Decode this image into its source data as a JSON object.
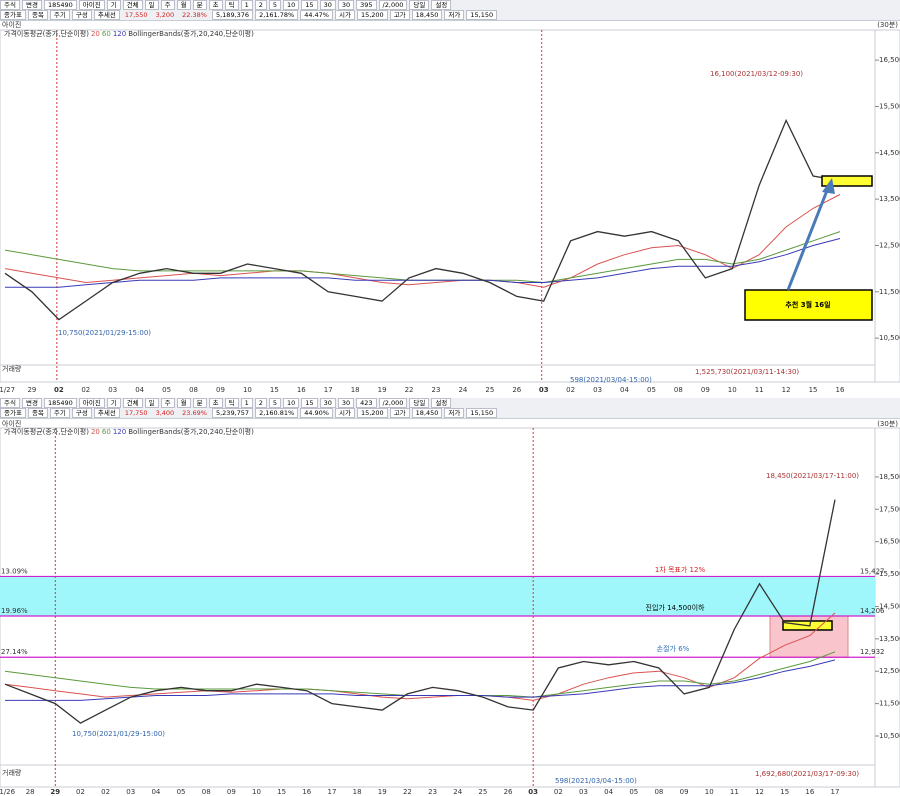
{
  "toolbars": [
    {
      "row1": [
        "주식",
        "변경",
        "185490",
        "아이진",
        "기",
        "건체",
        "일",
        "주",
        "월",
        "분",
        "초",
        "틱",
        "1",
        "2",
        "5",
        "10",
        "15",
        "30",
        "30",
        "395",
        "/2,000",
        "당일",
        "설정"
      ],
      "row2": [
        "종가표",
        "종목",
        "주기",
        "구성",
        "추세선",
        "17,550",
        "3,200",
        "22.38%",
        "5,189,376",
        "2,161.78%",
        "44.47%",
        "시가",
        "15,200",
        "고가",
        "18,450",
        "저가",
        "15,150"
      ]
    },
    {
      "row1": [
        "주식",
        "변경",
        "185490",
        "아이진",
        "기",
        "건체",
        "일",
        "주",
        "월",
        "분",
        "초",
        "틱",
        "1",
        "2",
        "5",
        "10",
        "15",
        "30",
        "30",
        "423",
        "/2,000",
        "당일",
        "설정"
      ],
      "row2": [
        "종가표",
        "종목",
        "주기",
        "구성",
        "추세선",
        "17,750",
        "3,400",
        "23.69%",
        "5,239,757",
        "2,160.81%",
        "44.90%",
        "시가",
        "15,200",
        "고가",
        "18,450",
        "저가",
        "15,150"
      ]
    }
  ],
  "chart_data": [
    {
      "type": "line",
      "legend_title": "가격이동평균(종가,단순이평)",
      "legend_extra": "BollingerBands(종가,20,240,단순이평)",
      "categories": [
        "01/27",
        "29",
        "02",
        "02",
        "03",
        "04",
        "05",
        "08",
        "09",
        "10",
        "15",
        "16",
        "17",
        "18",
        "19",
        "22",
        "23",
        "24",
        "25",
        "26",
        "03",
        "02",
        "03",
        "04",
        "05",
        "08",
        "09",
        "10",
        "11",
        "12",
        "15",
        "16"
      ],
      "values": [
        11900,
        11500,
        10900,
        11300,
        11700,
        11900,
        12000,
        11900,
        11900,
        12100,
        12000,
        11900,
        11500,
        11400,
        11300,
        11800,
        12000,
        11900,
        11700,
        11400,
        11300,
        12600,
        12800,
        12700,
        12800,
        12600,
        11800,
        12000,
        13800,
        15200,
        14000,
        13900
      ],
      "color": "#333333",
      "series": [
        {
          "name": "20",
          "color": "#d9534f",
          "values": [
            12000,
            11900,
            11800,
            11700,
            11750,
            11800,
            11850,
            11900,
            11850,
            11900,
            11950,
            11950,
            11900,
            11800,
            11700,
            11650,
            11700,
            11750,
            11750,
            11700,
            11600,
            11800,
            12100,
            12300,
            12450,
            12500,
            12300,
            12000,
            12300,
            12900,
            13300,
            13600
          ]
        },
        {
          "name": "60",
          "color": "#5a9a3c",
          "values": [
            12400,
            12300,
            12200,
            12100,
            12000,
            11950,
            11950,
            11950,
            11950,
            11950,
            11950,
            11950,
            11900,
            11850,
            11800,
            11750,
            11750,
            11750,
            11750,
            11750,
            11700,
            11800,
            11900,
            12000,
            12100,
            12200,
            12200,
            12100,
            12200,
            12400,
            12600,
            12800
          ]
        },
        {
          "name": "120",
          "color": "#3a3ab8",
          "values": [
            11600,
            11600,
            11600,
            11650,
            11700,
            11750,
            11750,
            11750,
            11800,
            11800,
            11800,
            11800,
            11800,
            11750,
            11750,
            11750,
            11750,
            11750,
            11750,
            11700,
            11700,
            11750,
            11800,
            11900,
            12000,
            12050,
            12050,
            12050,
            12150,
            12300,
            12500,
            12650
          ]
        }
      ],
      "ylim": [
        9920,
        17150
      ],
      "yticks": [
        {
          "value": 16500,
          "label": "16,500"
        },
        {
          "value": 15500,
          "label": "15,500"
        },
        {
          "value": 14500,
          "label": "14,500"
        },
        {
          "value": 13500,
          "label": "13,500"
        },
        {
          "value": 12500,
          "label": "12,500"
        },
        {
          "value": 11500,
          "label": "11,500"
        },
        {
          "value": 10500,
          "label": "10,500"
        }
      ],
      "annotations": [
        "16,100(2021/03/12-09:30)",
        "10,750(2021/01/29-15:00)",
        "추천 3월 16일",
        "598(2021/03/04-15:00)",
        "1,525,730(2021/03/11-14:30)",
        "(30분)",
        "아이진",
        "거래량"
      ]
    },
    {
      "type": "line",
      "legend_title": "가격이동평균(종가,단순이평)",
      "legend_extra": "BollingerBands(종가,20,240,단순이평)",
      "categories": [
        "01/26",
        "28",
        "29",
        "02",
        "02",
        "03",
        "04",
        "05",
        "08",
        "09",
        "10",
        "15",
        "16",
        "17",
        "18",
        "19",
        "22",
        "23",
        "24",
        "25",
        "26",
        "03",
        "02",
        "03",
        "04",
        "05",
        "08",
        "09",
        "10",
        "11",
        "12",
        "15",
        "16",
        "17"
      ],
      "values": [
        12100,
        11800,
        11500,
        10900,
        11300,
        11700,
        11900,
        12000,
        11900,
        11900,
        12100,
        12000,
        11900,
        11500,
        11400,
        11300,
        11800,
        12000,
        11900,
        11700,
        11400,
        11300,
        12600,
        12800,
        12700,
        12800,
        12600,
        11800,
        12000,
        13800,
        15200,
        14000,
        13900,
        17800
      ],
      "color": "#333333",
      "series": [
        {
          "name": "20",
          "color": "#d9534f",
          "values": [
            12100,
            12000,
            11900,
            11800,
            11700,
            11750,
            11800,
            11850,
            11900,
            11850,
            11900,
            11950,
            11950,
            11900,
            11800,
            11700,
            11650,
            11700,
            11750,
            11750,
            11700,
            11600,
            11800,
            12100,
            12300,
            12450,
            12500,
            12300,
            12000,
            12300,
            12900,
            13300,
            13600,
            14300
          ]
        },
        {
          "name": "60",
          "color": "#5a9a3c",
          "values": [
            12500,
            12400,
            12300,
            12200,
            12100,
            12000,
            11950,
            11950,
            11950,
            11950,
            11950,
            11950,
            11950,
            11900,
            11850,
            11800,
            11750,
            11750,
            11750,
            11750,
            11750,
            11700,
            11800,
            11900,
            12000,
            12100,
            12200,
            12200,
            12100,
            12200,
            12400,
            12600,
            12800,
            13100
          ]
        },
        {
          "name": "120",
          "color": "#3a3ab8",
          "values": [
            11600,
            11600,
            11600,
            11600,
            11650,
            11700,
            11750,
            11750,
            11750,
            11800,
            11800,
            11800,
            11800,
            11800,
            11750,
            11750,
            11750,
            11750,
            11750,
            11750,
            11700,
            11700,
            11750,
            11800,
            11900,
            12000,
            12050,
            12050,
            12050,
            12150,
            12300,
            12500,
            12650,
            12850
          ]
        }
      ],
      "ylim": [
        9605,
        20010
      ],
      "yticks": [
        {
          "value": 18500,
          "label": "18,500"
        },
        {
          "value": 17500,
          "label": "17,500"
        },
        {
          "value": 16500,
          "label": "16,500"
        },
        {
          "value": 15500,
          "label": "15,500"
        },
        {
          "value": 14500,
          "label": "14,500"
        },
        {
          "value": 13500,
          "label": "13,500"
        },
        {
          "value": 12500,
          "label": "12,500"
        },
        {
          "value": 11500,
          "label": "11,500"
        },
        {
          "value": 10500,
          "label": "10,500"
        }
      ],
      "levels": [
        {
          "value": 15427,
          "label": "15,427",
          "pct": "13.09%"
        },
        {
          "value": 14206,
          "label": "14,206",
          "pct": "19.96%"
        },
        {
          "value": 12932,
          "label": "12,932",
          "pct": "27.14%"
        }
      ],
      "annotations": [
        "18,450(2021/03/17-11:00)",
        "10,750(2021/01/29-15:00)",
        "1차 목표가 12%",
        "진입가 14,500이하",
        "손절가 6%",
        "598(2021/03/04-15:00)",
        "1,692,680(2021/03/17-09:30)",
        "(30분)",
        "아이진",
        "거래량"
      ]
    }
  ]
}
